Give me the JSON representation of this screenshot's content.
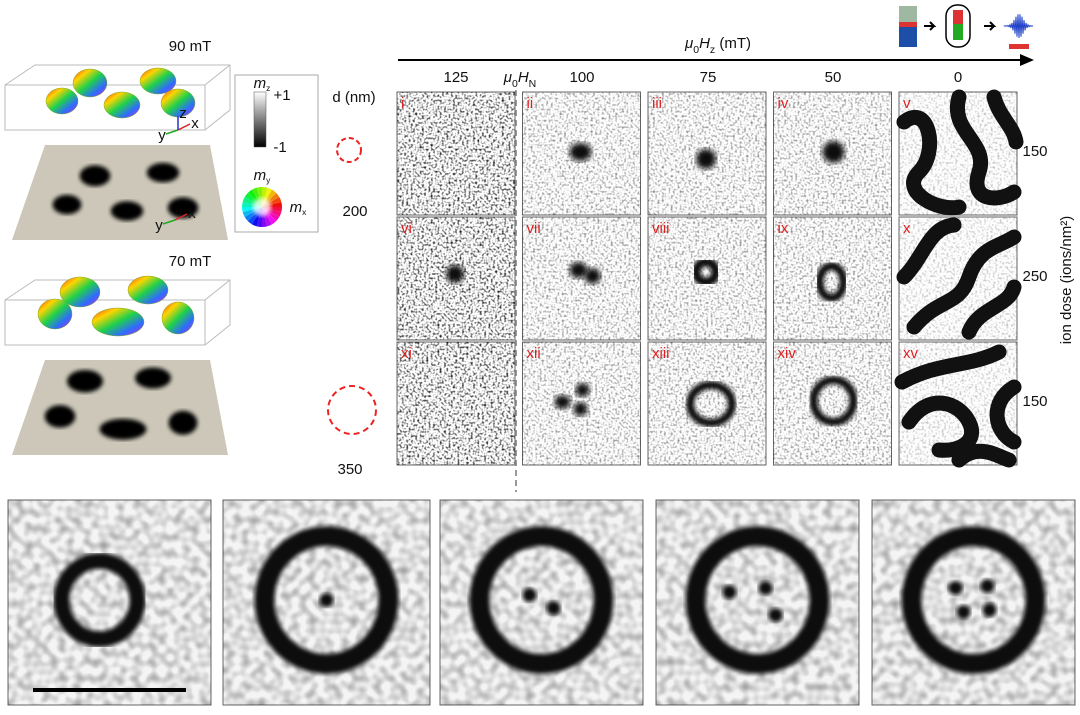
{
  "figure": {
    "render_fields": [
      "90 mT",
      "70 mT"
    ],
    "triad_axes": [
      "x",
      "y",
      "z"
    ],
    "colorbar": {
      "symbol": "m",
      "sub": "z",
      "max": "+1",
      "min": "-1"
    },
    "color_wheel": {
      "y_symbol": "m",
      "y_sub": "y",
      "x_symbol": "m",
      "x_sub": "x"
    },
    "diameter": {
      "title": "d (nm)",
      "values": [
        "200",
        "350"
      ]
    },
    "field_axis": {
      "parts": [
        "μ",
        "0",
        "H",
        "z",
        " (mT)"
      ],
      "nucleation": [
        "μ",
        "0",
        "H",
        "N"
      ],
      "values": [
        "125",
        "100",
        "75",
        "50",
        "0"
      ]
    },
    "panels": [
      "i",
      "ii",
      "iii",
      "iv",
      "v",
      "vi",
      "vii",
      "viii",
      "ix",
      "x",
      "xi",
      "xii",
      "xiii",
      "xiv",
      "xv"
    ],
    "dose": {
      "title": "ion dose (ions/nm²)",
      "values": [
        "150",
        "250",
        "150"
      ]
    }
  }
}
